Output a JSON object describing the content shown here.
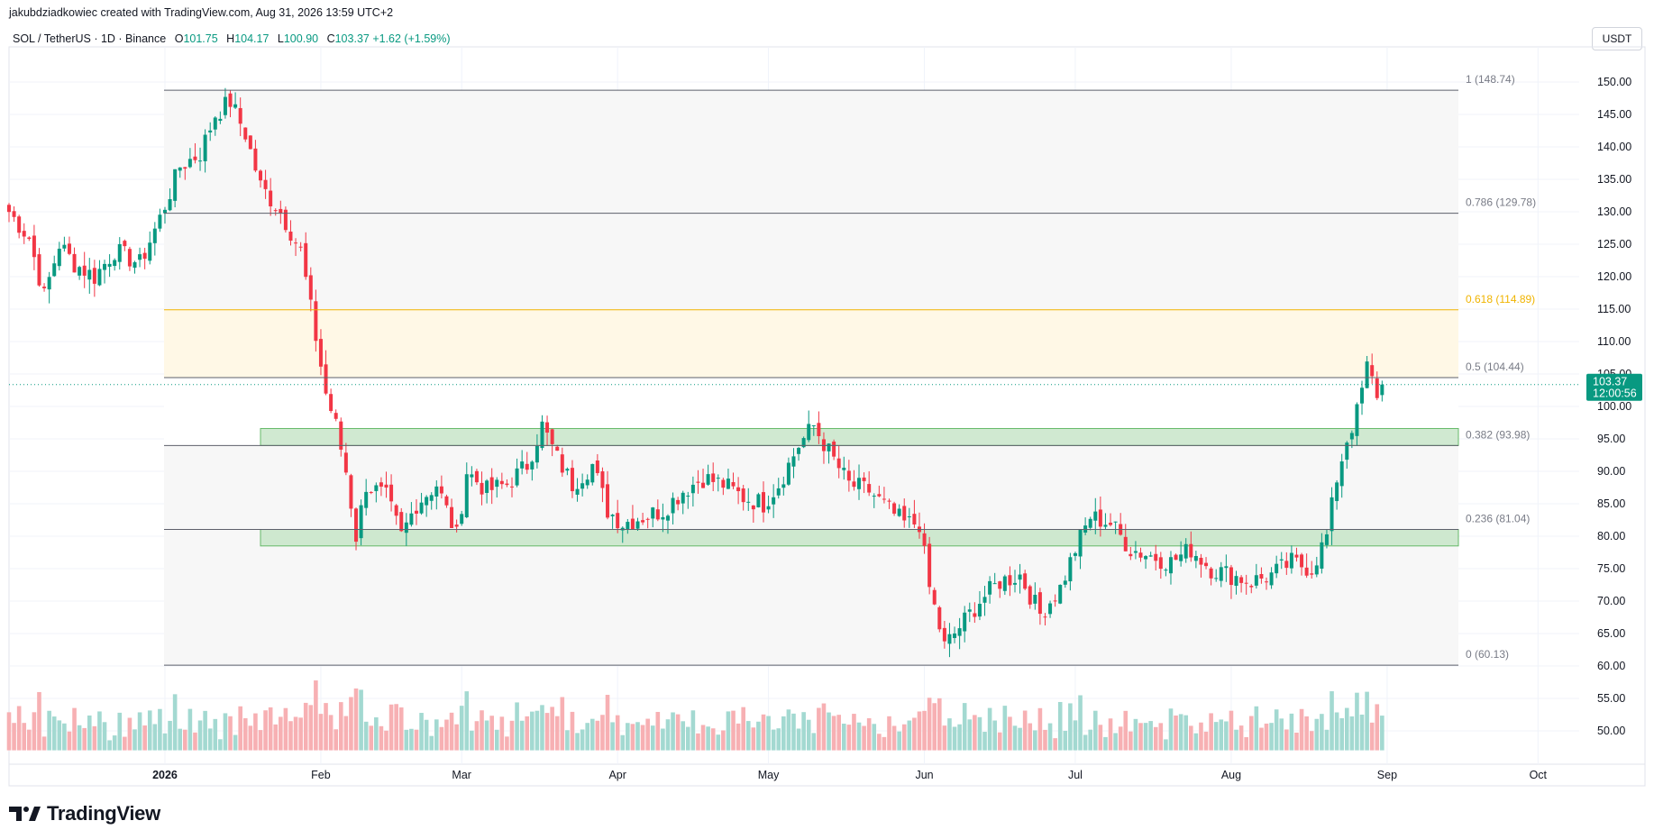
{
  "header": {
    "credit": "jakubdziadkowiec created with TradingView.com, Aug 31, 2026 13:59 UTC+2",
    "symbol": "SOL / TetherUS · 1D · Binance",
    "open_label": "O",
    "open": "101.75",
    "high_label": "H",
    "high": "104.17",
    "low_label": "L",
    "low": "100.90",
    "close_label": "C",
    "close": "103.37",
    "change": "+1.62 (+1.59%)"
  },
  "currency_button": "USDT",
  "price_tag": {
    "price": "103.37",
    "countdown": "12:00:56"
  },
  "brand": "TradingView",
  "colors": {
    "up": "#089981",
    "down": "#f23645",
    "up_volume": "#a3d9d1",
    "down_volume": "#f7b0b3",
    "zone_fill": "#c8e6c9",
    "zone_border": "#4caf50",
    "fib_618": "#f0b400",
    "fib_line": "#787b86"
  },
  "chart_data": {
    "type": "candlestick",
    "x_ticks": [
      "2026",
      "Feb",
      "Mar",
      "Apr",
      "May",
      "Jun",
      "Jul",
      "Aug",
      "Sep",
      "Oct"
    ],
    "y_ticks": [
      "150.00",
      "145.00",
      "140.00",
      "135.00",
      "130.00",
      "125.00",
      "120.00",
      "115.00",
      "110.00",
      "105.00",
      "100.00",
      "95.00",
      "90.00",
      "85.00",
      "80.00",
      "75.00",
      "70.00",
      "65.00",
      "60.00",
      "55.00",
      "50.00"
    ],
    "ylim": [
      46,
      152
    ],
    "fib_levels": [
      {
        "label": "1 (148.74)",
        "value": 148.74
      },
      {
        "label": "0.786 (129.78)",
        "value": 129.78
      },
      {
        "label": "0.618 (114.89)",
        "value": 114.89
      },
      {
        "label": "0.5 (104.44)",
        "value": 104.44
      },
      {
        "label": "0.382 (93.98)",
        "value": 93.98
      },
      {
        "label": "0.236 (81.04)",
        "value": 81.04
      },
      {
        "label": "0 (60.13)",
        "value": 60.13
      }
    ],
    "support_zones": [
      {
        "low": 93.98,
        "high": 96.6
      },
      {
        "low": 78.5,
        "high": 81.04
      }
    ],
    "last_price": 103.37,
    "close_path": [
      [
        "2025-12-01",
        130
      ],
      [
        "2025-12-05",
        126
      ],
      [
        "2025-12-08",
        117
      ],
      [
        "2025-12-11",
        125
      ],
      [
        "2025-12-14",
        122
      ],
      [
        "2025-12-18",
        120
      ],
      [
        "2025-12-22",
        124
      ],
      [
        "2025-12-27",
        122
      ],
      [
        "2025-12-31",
        129
      ],
      [
        "2026-01-04",
        137
      ],
      [
        "2026-01-08",
        139
      ],
      [
        "2026-01-11",
        145
      ],
      [
        "2026-01-14",
        147
      ],
      [
        "2026-01-17",
        142
      ],
      [
        "2026-01-20",
        134
      ],
      [
        "2026-01-24",
        130
      ],
      [
        "2026-01-28",
        124
      ],
      [
        "2026-01-30",
        115
      ],
      [
        "2026-02-02",
        102
      ],
      [
        "2026-02-04",
        97
      ],
      [
        "2026-02-06",
        90
      ],
      [
        "2026-02-08",
        80
      ],
      [
        "2026-02-10",
        88
      ],
      [
        "2026-02-14",
        86
      ],
      [
        "2026-02-17",
        80
      ],
      [
        "2026-02-20",
        85
      ],
      [
        "2026-02-24",
        88
      ],
      [
        "2026-02-28",
        80
      ],
      [
        "2026-03-02",
        90
      ],
      [
        "2026-03-06",
        87
      ],
      [
        "2026-03-10",
        88
      ],
      [
        "2026-03-14",
        91
      ],
      [
        "2026-03-17",
        97
      ],
      [
        "2026-03-20",
        92
      ],
      [
        "2026-03-23",
        88
      ],
      [
        "2026-03-27",
        91
      ],
      [
        "2026-03-30",
        84
      ],
      [
        "2026-04-02",
        82
      ],
      [
        "2026-04-06",
        83
      ],
      [
        "2026-04-10",
        84
      ],
      [
        "2026-04-14",
        87
      ],
      [
        "2026-04-18",
        89
      ],
      [
        "2026-04-22",
        88
      ],
      [
        "2026-04-26",
        86
      ],
      [
        "2026-04-30",
        85
      ],
      [
        "2026-05-03",
        88
      ],
      [
        "2026-05-07",
        94
      ],
      [
        "2026-05-10",
        97
      ],
      [
        "2026-05-13",
        93
      ],
      [
        "2026-05-17",
        88
      ],
      [
        "2026-05-21",
        87
      ],
      [
        "2026-05-25",
        84
      ],
      [
        "2026-05-28",
        82
      ],
      [
        "2026-05-31",
        82
      ],
      [
        "2026-06-02",
        72
      ],
      [
        "2026-06-05",
        63
      ],
      [
        "2026-06-08",
        66
      ],
      [
        "2026-06-12",
        70
      ],
      [
        "2026-06-16",
        73
      ],
      [
        "2026-06-20",
        74
      ],
      [
        "2026-06-24",
        68
      ],
      [
        "2026-06-28",
        72
      ],
      [
        "2026-07-01",
        78
      ],
      [
        "2026-07-04",
        83
      ],
      [
        "2026-07-08",
        82
      ],
      [
        "2026-07-12",
        78
      ],
      [
        "2026-07-16",
        77
      ],
      [
        "2026-07-20",
        76
      ],
      [
        "2026-07-24",
        78
      ],
      [
        "2026-07-28",
        75
      ],
      [
        "2026-08-01",
        74
      ],
      [
        "2026-08-05",
        73
      ],
      [
        "2026-08-09",
        74
      ],
      [
        "2026-08-13",
        76
      ],
      [
        "2026-08-17",
        75
      ],
      [
        "2026-08-20",
        80
      ],
      [
        "2026-08-22",
        89
      ],
      [
        "2026-08-24",
        95
      ],
      [
        "2026-08-26",
        99
      ],
      [
        "2026-08-28",
        106
      ],
      [
        "2026-08-30",
        102
      ],
      [
        "2026-08-31",
        103.37
      ]
    ],
    "volume_range": [
      47,
      62
    ]
  }
}
